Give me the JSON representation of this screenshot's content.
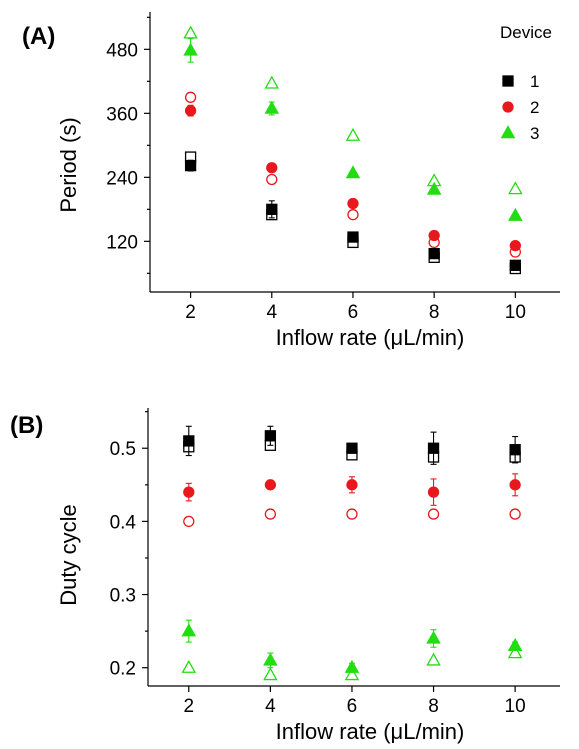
{
  "chart_data": [
    {
      "type": "scatter",
      "panel_label": "(A)",
      "xlabel": "Inflow rate (μL/min)",
      "ylabel": "Period (s)",
      "x_ticks": [
        2,
        4,
        6,
        8,
        10
      ],
      "y_ticks": [
        120,
        240,
        360,
        480
      ],
      "xlim": [
        1.0,
        11.1
      ],
      "ylim": [
        25,
        550
      ],
      "legend": {
        "title": "Device",
        "placement": "top-right",
        "entries": [
          "1",
          "2",
          "3"
        ]
      },
      "series": [
        {
          "name": "1",
          "color": "#000000",
          "marker": "square",
          "filled": true,
          "x": [
            2,
            4,
            6,
            8,
            10
          ],
          "y": [
            262,
            180,
            128,
            97,
            75
          ],
          "err": [
            10,
            16,
            4,
            3,
            3
          ]
        },
        {
          "name": "1",
          "color": "#000000",
          "marker": "square",
          "filled": false,
          "x": [
            2,
            4,
            6,
            8,
            10
          ],
          "y": [
            278,
            170,
            118,
            90,
            69
          ]
        },
        {
          "name": "2",
          "color": "#e8191c",
          "marker": "circle",
          "filled": true,
          "x": [
            2,
            4,
            6,
            8,
            10
          ],
          "y": [
            365,
            258,
            191,
            131,
            112
          ],
          "err": [
            10,
            0,
            0,
            0,
            0
          ]
        },
        {
          "name": "2",
          "color": "#e8191c",
          "marker": "circle",
          "filled": false,
          "x": [
            2,
            4,
            6,
            8,
            10
          ],
          "y": [
            390,
            236,
            170,
            118,
            100
          ]
        },
        {
          "name": "3",
          "color": "#22dd11",
          "marker": "triangle",
          "filled": true,
          "x": [
            2,
            4,
            6,
            8,
            10
          ],
          "y": [
            478,
            369,
            248,
            217,
            168
          ],
          "err": [
            22,
            12,
            0,
            0,
            0
          ]
        },
        {
          "name": "3",
          "color": "#22dd11",
          "marker": "triangle",
          "filled": false,
          "x": [
            2,
            4,
            6,
            8,
            10
          ],
          "y": [
            510,
            416,
            318,
            233,
            218
          ]
        }
      ]
    },
    {
      "type": "scatter",
      "panel_label": "(B)",
      "xlabel": "Inflow rate (μL/min)",
      "ylabel": "Duty cycle",
      "x_ticks": [
        2,
        4,
        6,
        8,
        10
      ],
      "y_ticks": [
        0.2,
        0.3,
        0.4,
        0.5
      ],
      "xlim": [
        1.0,
        11.1
      ],
      "ylim": [
        0.175,
        0.555
      ],
      "series": [
        {
          "name": "1",
          "color": "#000000",
          "marker": "square",
          "filled": true,
          "x": [
            2,
            4,
            6,
            8,
            10
          ],
          "y": [
            0.51,
            0.517,
            0.5,
            0.5,
            0.498
          ],
          "err": [
            0.02,
            0.013,
            0.006,
            0.022,
            0.018
          ]
        },
        {
          "name": "1",
          "color": "#000000",
          "marker": "square",
          "filled": false,
          "x": [
            2,
            4,
            6,
            8,
            10
          ],
          "y": [
            0.502,
            0.504,
            0.491,
            0.488,
            0.488
          ]
        },
        {
          "name": "2",
          "color": "#e8191c",
          "marker": "circle",
          "filled": true,
          "x": [
            2,
            4,
            6,
            8,
            10
          ],
          "y": [
            0.44,
            0.45,
            0.45,
            0.44,
            0.45
          ],
          "err": [
            0.012,
            0,
            0.011,
            0.018,
            0.015
          ]
        },
        {
          "name": "2",
          "color": "#e8191c",
          "marker": "circle",
          "filled": false,
          "x": [
            2,
            4,
            6,
            8,
            10
          ],
          "y": [
            0.4,
            0.41,
            0.41,
            0.41,
            0.41
          ]
        },
        {
          "name": "3",
          "color": "#22dd11",
          "marker": "triangle",
          "filled": true,
          "x": [
            2,
            4,
            6,
            8,
            10
          ],
          "y": [
            0.25,
            0.21,
            0.2,
            0.24,
            0.23
          ],
          "err": [
            0.015,
            0.01,
            0.006,
            0.012,
            0.005
          ]
        },
        {
          "name": "3",
          "color": "#22dd11",
          "marker": "triangle",
          "filled": false,
          "x": [
            2,
            4,
            6,
            8,
            10
          ],
          "y": [
            0.2,
            0.19,
            0.19,
            0.21,
            0.22
          ]
        }
      ]
    }
  ]
}
